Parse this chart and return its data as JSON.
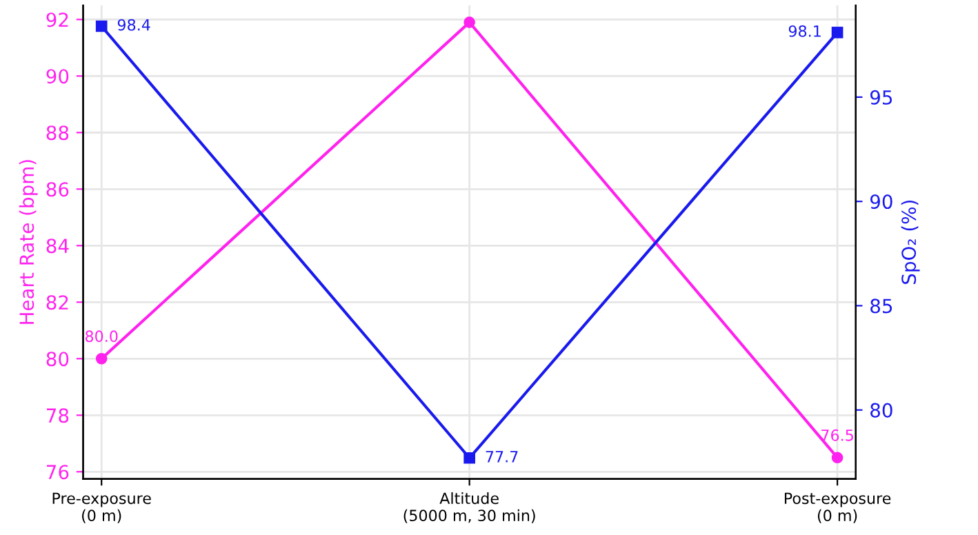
{
  "chart_data": {
    "type": "line",
    "categories": [
      "Pre-exposure\n(0 m)",
      "Altitude\n(5000 m, 30 min)",
      "Post-exposure\n(0 m)"
    ],
    "ylabel": "Heart Rate (bpm)",
    "y2label": "SpO₂ (%)",
    "ylim": [
      75.75,
      92.5
    ],
    "yticks": [
      76,
      78,
      80,
      82,
      84,
      86,
      88,
      90,
      92
    ],
    "y2lim": [
      76.7,
      99.4
    ],
    "y2ticks": [
      80,
      85,
      90,
      95
    ],
    "grid": true,
    "legend": false,
    "series": [
      {
        "color": "#ff22ee",
        "marker": "circle",
        "values": [
          80.0,
          91.9,
          76.5
        ],
        "value_labels": [
          "80.0",
          null,
          "76.5"
        ]
      },
      {
        "color": "#1a1aee",
        "marker": "square",
        "axis": "y2",
        "values": [
          98.4,
          77.7,
          98.1
        ],
        "value_labels": [
          "98.4",
          "77.7",
          "98.1"
        ]
      }
    ]
  }
}
